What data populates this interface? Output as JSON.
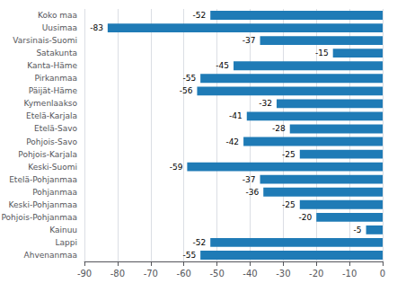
{
  "chart_data": {
    "type": "bar",
    "orientation": "horizontal",
    "categories": [
      "Koko maa",
      "Uusimaa",
      "Varsinais-Suomi",
      "Satakunta",
      "Kanta-Häme",
      "Pirkanmaa",
      "Päijät-Häme",
      "Kymenlaakso",
      "Etelä-Karjala",
      "Etelä-Savo",
      "Pohjois-Savo",
      "Pohjois-Karjala",
      "Keski-Suomi",
      "Etelä-Pohjanmaa",
      "Pohjanmaa",
      "Keski-Pohjanmaa",
      "Pohjois-Pohjanmaa",
      "Kainuu",
      "Lappi",
      "Ahvenanmaa"
    ],
    "values": [
      -52,
      -83,
      -37,
      -15,
      -45,
      -55,
      -56,
      -32,
      -41,
      -28,
      -42,
      -25,
      -59,
      -37,
      -36,
      -25,
      -20,
      -5,
      -52,
      -55
    ],
    "color": "#1f7bb6",
    "xlim": [
      -90,
      0
    ],
    "xticks": [
      -90,
      -80,
      -70,
      -60,
      -50,
      -40,
      -30,
      -20,
      -10,
      0
    ],
    "grid": true,
    "data_labels": true
  }
}
